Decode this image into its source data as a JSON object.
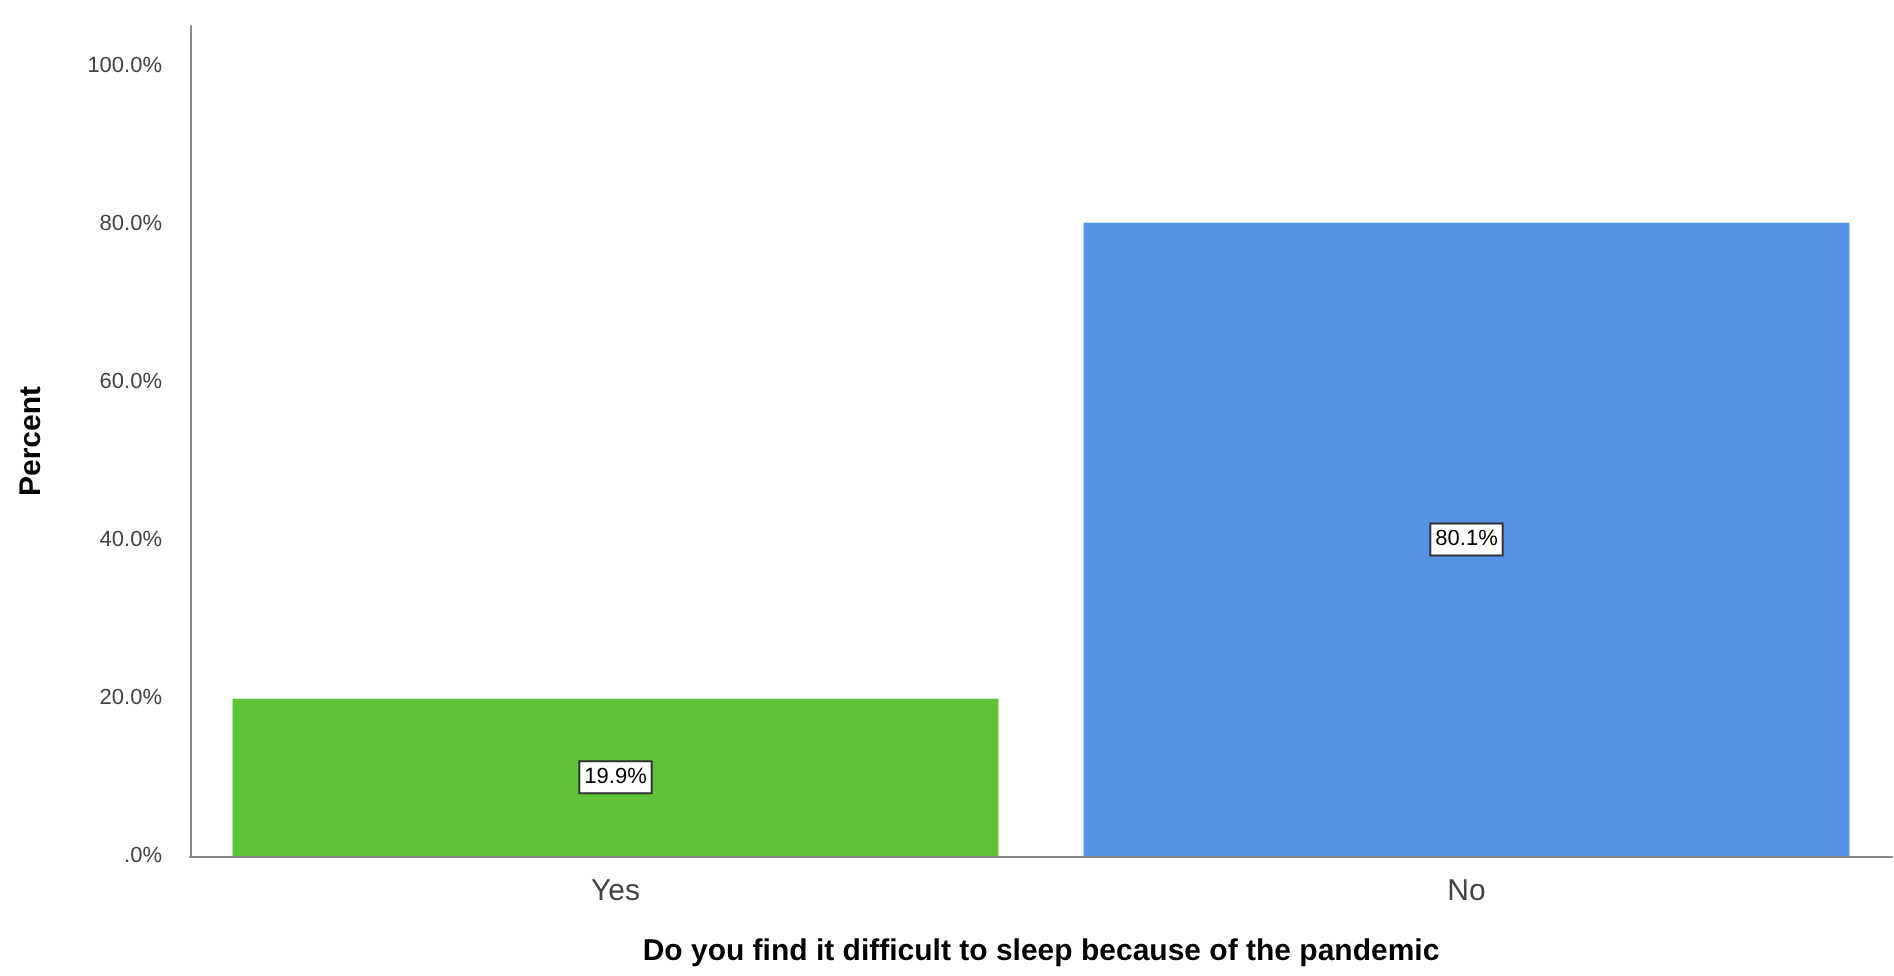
{
  "chart_data": {
    "type": "bar",
    "xlabel": "Do you find it difficult to sleep because of the pandemic",
    "ylabel": "Percent",
    "categories": [
      "Yes",
      "No"
    ],
    "values": [
      19.9,
      80.1
    ],
    "colors": [
      "#5ec337",
      "#5495e3"
    ],
    "value_labels": [
      "19.9%",
      "80.1%"
    ],
    "ylim": [
      0,
      105
    ],
    "yticks": [
      {
        "value": 0,
        "label": ".0%"
      },
      {
        "value": 20,
        "label": "20.0%"
      },
      {
        "value": 40,
        "label": "40.0%"
      },
      {
        "value": 60,
        "label": "60.0%"
      },
      {
        "value": 80,
        "label": "80.0%"
      },
      {
        "value": 100,
        "label": "100.0%"
      }
    ],
    "grid": false
  }
}
